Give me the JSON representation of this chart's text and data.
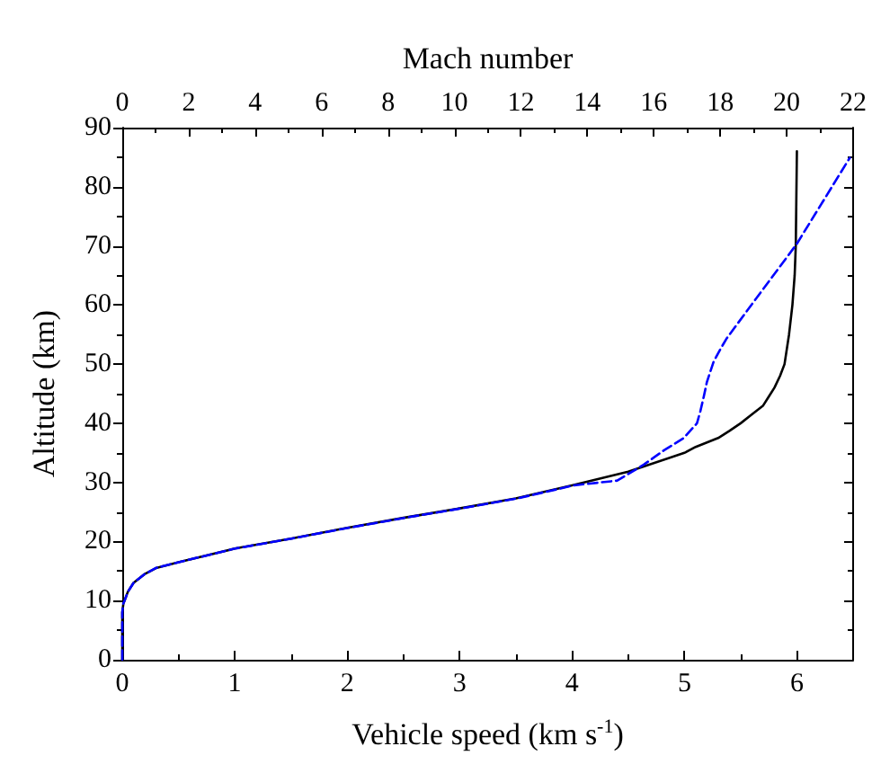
{
  "chart_data": {
    "type": "line",
    "xlabel": "Vehicle speed (km s$^{-1}$)",
    "x2label": "Mach number",
    "ylabel": "Altitude (km)",
    "xlim": [
      0,
      6.5
    ],
    "xticks": [
      0,
      1,
      2,
      3,
      4,
      5,
      6
    ],
    "x2lim": [
      0,
      22
    ],
    "x2ticks": [
      0,
      2,
      4,
      6,
      8,
      10,
      12,
      14,
      16,
      18,
      20,
      22
    ],
    "ylim": [
      0,
      90
    ],
    "yticks": [
      0,
      10,
      20,
      30,
      40,
      50,
      60,
      70,
      80,
      90
    ],
    "marker": "none",
    "series": [
      {
        "color": "#000000",
        "line_style": "solid",
        "x": [
          0,
          0,
          0.01,
          0.02,
          0.05,
          0.1,
          0.2,
          0.3,
          0.5,
          1,
          1.5,
          2,
          2.5,
          3,
          3.5,
          4,
          4.5,
          5,
          5.1,
          5.3,
          5.4,
          5.5,
          5.6,
          5.7,
          5.75,
          5.8,
          5.85,
          5.89,
          5.93,
          5.96,
          5.98,
          5.99,
          6.0
        ],
        "values": [
          0,
          8,
          9.5,
          10,
          11.5,
          13,
          14.5,
          15.5,
          16.5,
          18.8,
          20.5,
          22.3,
          24,
          25.6,
          27.3,
          29.5,
          31.8,
          35,
          36,
          37.5,
          38.7,
          40,
          41.5,
          43,
          44.5,
          46,
          48,
          50,
          55,
          60,
          65,
          70,
          86
        ]
      },
      {
        "color": "#0000ff",
        "line_style": "dashed",
        "axis": "x2",
        "x": [
          0,
          0,
          0.03,
          0.07,
          0.17,
          0.34,
          0.68,
          1.0,
          1.7,
          3.4,
          5.1,
          6.8,
          8.5,
          10.2,
          11.9,
          13.6,
          14.9,
          15.7,
          16.3,
          16.9,
          17.3,
          17.4,
          17.5,
          17.6,
          17.8,
          18.0,
          18.2,
          19.2,
          20.3,
          21.9
        ],
        "values": [
          0,
          8,
          9.5,
          10,
          11.5,
          13,
          14.5,
          15.5,
          16.5,
          18.8,
          20.5,
          22.3,
          24,
          25.6,
          27.3,
          29.5,
          30.3,
          33,
          35.4,
          37.5,
          40,
          42,
          44.4,
          47,
          50.4,
          52.5,
          54.4,
          62,
          70.3,
          84.9
        ]
      }
    ]
  }
}
